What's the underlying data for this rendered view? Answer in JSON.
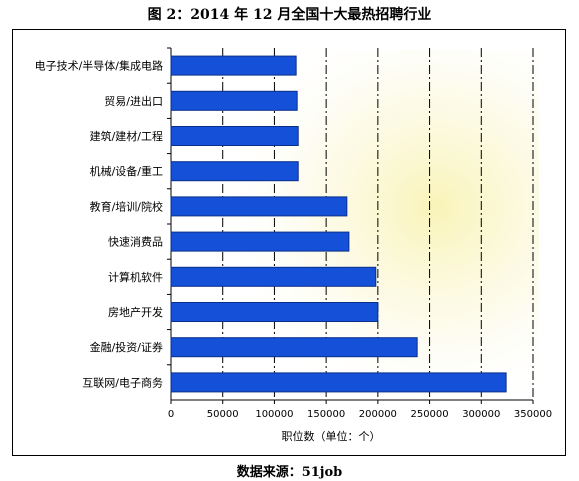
{
  "title": "图 2：2014 年 12 月全国十大最热招聘行业",
  "source": "数据来源：51job",
  "colors": {
    "bar_fill": "#1450d8",
    "bar_stroke": "#0a2f8a",
    "glow": "#f7f0a0"
  },
  "chart_data": {
    "type": "bar",
    "orientation": "horizontal",
    "categories": [
      "电子技术/半导体/集成电路",
      "贸易/进出口",
      "建筑/建材/工程",
      "机械/设备/重工",
      "教育/培训/院校",
      "快速消费品",
      "计算机软件",
      "房地产开发",
      "金融/投资/证券",
      "互联网/电子商务"
    ],
    "values": [
      121000,
      122000,
      123000,
      123000,
      170000,
      172000,
      198000,
      200000,
      238000,
      324000
    ],
    "xlabel": "职位数（单位：个）",
    "xlim": [
      0,
      350000
    ],
    "xticks": [
      0,
      50000,
      100000,
      150000,
      200000,
      250000,
      300000,
      350000
    ],
    "grid": true,
    "legend": "none"
  }
}
